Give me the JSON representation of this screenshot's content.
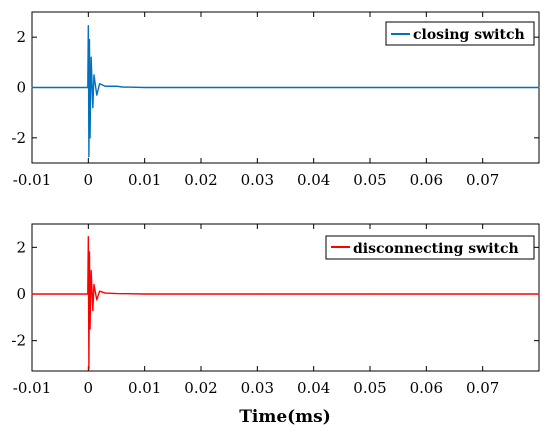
{
  "chart_data": [
    {
      "type": "line",
      "xlabel": "",
      "xlim": [
        -0.01,
        0.08
      ],
      "ylim": [
        -3,
        3
      ],
      "xticks": [
        "-0.01",
        "0",
        "0.01",
        "0.02",
        "0.03",
        "0.04",
        "0.05",
        "0.06",
        "0.07"
      ],
      "yticks": [
        "2",
        "0",
        "-2"
      ],
      "legend_position": "top-right",
      "series": [
        {
          "name": "closing switch",
          "color": "#0072BD",
          "x": [
            -0.01,
            -0.0001,
            0.0,
            0.0001,
            0.0002,
            0.0003,
            0.0005,
            0.0008,
            0.001,
            0.0015,
            0.002,
            0.003,
            0.005,
            0.006,
            0.01,
            0.03,
            0.05,
            0.07,
            0.08
          ],
          "y": [
            0.0,
            0.0,
            2.45,
            -2.75,
            1.9,
            -2.0,
            1.2,
            -0.8,
            0.5,
            -0.3,
            0.15,
            0.05,
            0.05,
            0.02,
            0.0,
            0.0,
            0.0,
            0.0,
            0.0
          ]
        }
      ]
    },
    {
      "type": "line",
      "xlabel": "Time(ms)",
      "xlim": [
        -0.01,
        0.08
      ],
      "ylim": [
        -3.3,
        3.0
      ],
      "xticks": [
        "-0.01",
        "0",
        "0.01",
        "0.02",
        "0.03",
        "0.04",
        "0.05",
        "0.06",
        "0.07"
      ],
      "yticks": [
        "2",
        "0",
        "-2"
      ],
      "legend_position": "top-right",
      "series": [
        {
          "name": "disconnecting switch",
          "color": "#FF0000",
          "x": [
            -0.01,
            -0.0001,
            0.0,
            0.0001,
            0.0002,
            0.0003,
            0.0005,
            0.0008,
            0.001,
            0.0015,
            0.002,
            0.003,
            0.005,
            0.01,
            0.03,
            0.05,
            0.07,
            0.08
          ],
          "y": [
            0.0,
            0.0,
            2.45,
            -3.2,
            1.8,
            -1.5,
            1.0,
            -0.7,
            0.4,
            -0.25,
            0.12,
            0.04,
            0.02,
            0.0,
            0.0,
            0.0,
            0.0,
            0.0
          ]
        }
      ]
    }
  ]
}
